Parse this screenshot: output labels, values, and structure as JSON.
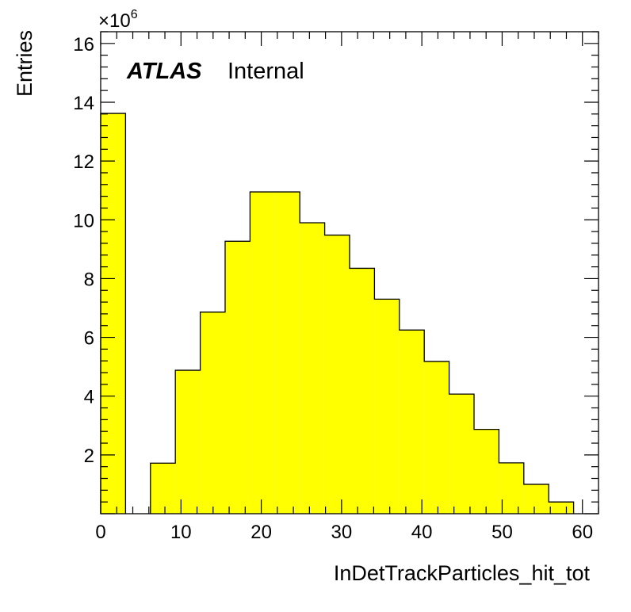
{
  "chart_data": {
    "type": "bar",
    "xlabel": "InDetTrackParticles_hit_tot",
    "ylabel": "Entries",
    "y_multiplier_base": "×10",
    "y_multiplier_exponent": "6",
    "label_bold": "ATLAS",
    "label_normal": "Internal",
    "xlim": [
      0,
      62
    ],
    "ylim": [
      0,
      16.4
    ],
    "x_ticks": [
      0,
      10,
      20,
      30,
      40,
      50,
      60
    ],
    "y_ticks": [
      2,
      4,
      6,
      8,
      10,
      12,
      14,
      16
    ],
    "bin_edges": [
      0,
      3.1,
      6.2,
      9.3,
      12.4,
      15.5,
      18.6,
      21.7,
      24.8,
      27.9,
      31.0,
      34.1,
      37.2,
      40.3,
      43.4,
      46.5,
      49.6,
      52.7,
      55.8,
      58.9
    ],
    "values": [
      13.62,
      0,
      1.72,
      4.88,
      6.86,
      9.27,
      10.95,
      10.95,
      9.9,
      9.48,
      8.35,
      7.3,
      6.25,
      5.18,
      4.07,
      2.87,
      1.73,
      1.0,
      0.4
    ],
    "fill_color": "#ffff00",
    "line_color": "#000000",
    "grid": false,
    "legend": "none"
  }
}
